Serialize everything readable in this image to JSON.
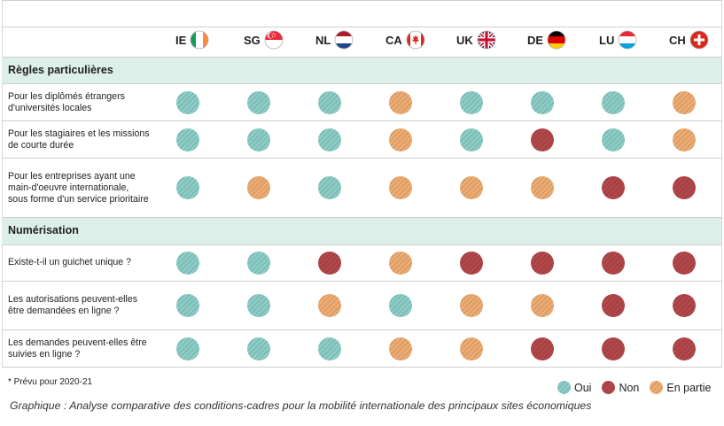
{
  "chart_data": {
    "type": "table",
    "colors": {
      "oui": "#8dd0c9",
      "non": "#b5484b",
      "partie": "#f1ae74"
    },
    "icon_names": {
      "IE": "ireland-flag-icon",
      "SG": "singapore-flag-icon",
      "NL": "netherlands-flag-icon",
      "CA": "canada-flag-icon",
      "UK": "united-kingdom-flag-icon",
      "DE": "germany-flag-icon",
      "LU": "luxembourg-flag-icon",
      "CH": "switzerland-flag-icon"
    },
    "countries": [
      "IE",
      "SG",
      "NL",
      "CA",
      "UK",
      "DE",
      "LU",
      "CH"
    ],
    "sections": [
      {
        "title": "Règles particulières",
        "rows": [
          {
            "label": "Pour les diplômés étrangers d'universités locales",
            "values": [
              "oui",
              "oui",
              "oui",
              "partie",
              "oui",
              "oui",
              "oui",
              "partie"
            ]
          },
          {
            "label": "Pour les stagiaires et les missions de courte durée",
            "values": [
              "oui",
              "oui",
              "oui",
              "partie",
              "oui",
              "non",
              "oui",
              "partie"
            ]
          },
          {
            "label": "Pour les entreprises ayant une main-d'oeuvre internationale, sous forme d'un service prioritaire",
            "values": [
              "oui",
              "partie",
              "oui",
              "partie",
              "partie",
              "partie",
              "non",
              "non"
            ]
          }
        ]
      },
      {
        "title": "Numérisation",
        "rows": [
          {
            "label": "Existe-t-il un guichet unique ?",
            "values": [
              "oui",
              "oui",
              "non",
              "partie",
              "non",
              "non",
              "non",
              "non"
            ]
          },
          {
            "label": "Les autorisations peuvent-elles être demandées en ligne ?",
            "values": [
              "oui",
              "oui",
              "partie",
              "oui",
              "partie",
              "partie",
              "non",
              "non"
            ]
          },
          {
            "label": "Les demandes peuvent-elles être suivies en ligne ?",
            "values": [
              "oui",
              "oui",
              "oui",
              "partie",
              "partie",
              "non",
              "non",
              "non"
            ]
          }
        ]
      }
    ],
    "legend": [
      {
        "key": "oui",
        "label": "Oui"
      },
      {
        "key": "non",
        "label": "Non"
      },
      {
        "key": "partie",
        "label": "En partie"
      }
    ],
    "footnote": "* Prévu pour 2020-21",
    "caption": "Graphique : Analyse comparative des conditions-cadres pour la mobilité internationale des principaux sites économiques"
  }
}
